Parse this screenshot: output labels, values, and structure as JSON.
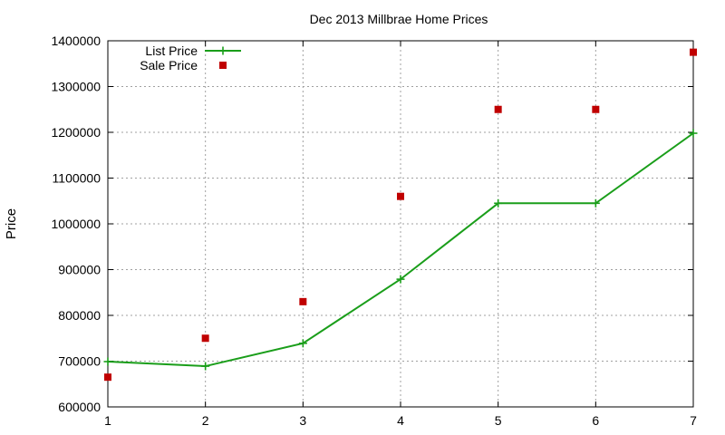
{
  "chart_data": {
    "type": "line",
    "title": "Dec 2013 Millbrae Home Prices",
    "xlabel": "",
    "ylabel": "Price",
    "x": [
      1,
      2,
      3,
      4,
      5,
      6,
      7
    ],
    "xlim": [
      1,
      7
    ],
    "ylim": [
      600000,
      1400000
    ],
    "xticks": [
      "1",
      "2",
      "3",
      "4",
      "5",
      "6",
      "7"
    ],
    "yticks": [
      "600000",
      "700000",
      "800000",
      "900000",
      "1000000",
      "1100000",
      "1200000",
      "1300000",
      "1400000"
    ],
    "grid": true,
    "legend_position": "top-left",
    "series": [
      {
        "name": "List Price",
        "style": "linespoints",
        "marker": "plus",
        "color": "#1a9e1a",
        "values": [
          699000,
          689000,
          739000,
          879000,
          1045000,
          1045000,
          1198000
        ]
      },
      {
        "name": "Sale Price",
        "style": "points",
        "marker": "square",
        "color": "#c00000",
        "values": [
          665000,
          750000,
          830000,
          1060000,
          1250000,
          1250000,
          1375000
        ]
      }
    ]
  }
}
